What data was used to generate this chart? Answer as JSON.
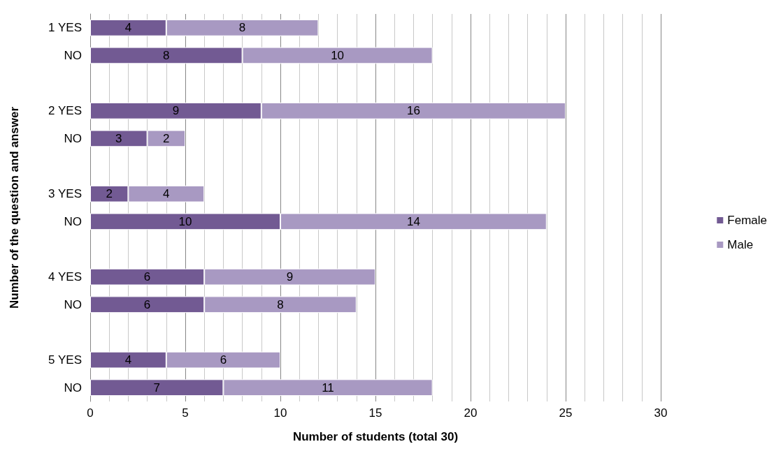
{
  "chart_data": {
    "type": "bar",
    "orientation": "horizontal",
    "stacked": true,
    "xlabel": "Number of students (total 30)",
    "ylabel": "Number of the question and answer",
    "categories": [
      "1 YES",
      "NO",
      null,
      "2 YES",
      "NO",
      null,
      "3 YES",
      "NO",
      null,
      "4 YES",
      "NO",
      null,
      "5 YES",
      "NO"
    ],
    "series": [
      {
        "name": "Female",
        "color": "#725a93",
        "values": [
          4,
          8,
          null,
          9,
          3,
          null,
          2,
          10,
          null,
          6,
          6,
          null,
          4,
          7
        ]
      },
      {
        "name": "Male",
        "color": "#a899c2",
        "values": [
          8,
          10,
          null,
          16,
          2,
          null,
          4,
          14,
          null,
          9,
          8,
          null,
          6,
          11
        ]
      }
    ],
    "xlim": [
      0,
      30
    ],
    "xticks": [
      0,
      5,
      10,
      15,
      20,
      25,
      30
    ],
    "grid": "x",
    "legend": "right",
    "data_labels": true
  }
}
